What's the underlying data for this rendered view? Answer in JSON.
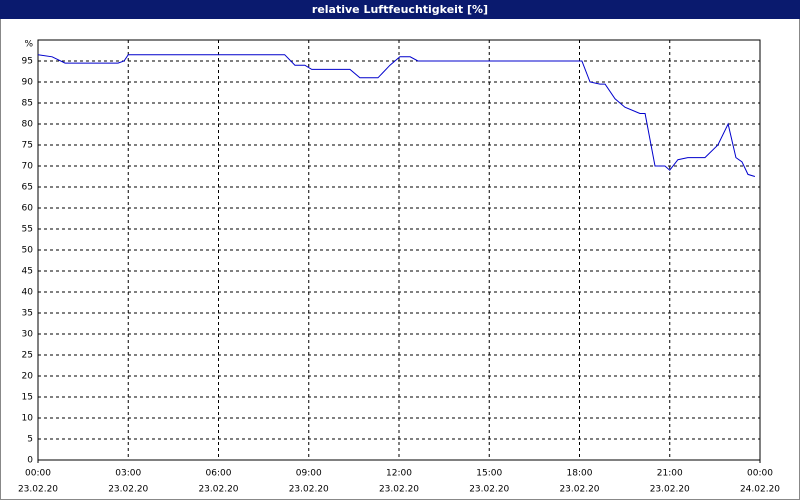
{
  "chart_data": {
    "type": "line",
    "title": "relative Luftfeuchtigkeit [%]",
    "y_label": "%",
    "x": [
      0,
      0.47,
      0.9,
      2.66,
      2.86,
      3.0,
      8.2,
      8.54,
      8.87,
      9.1,
      10.37,
      10.7,
      11.3,
      11.7,
      12.03,
      12.37,
      12.63,
      18.08,
      18.35,
      18.68,
      18.85,
      19.18,
      19.51,
      20.01,
      20.18,
      20.51,
      20.84,
      21.0,
      21.27,
      21.6,
      22.17,
      22.6,
      22.94,
      23.2,
      23.4,
      23.6,
      23.83
    ],
    "series": [
      {
        "name": "relative Luftfeuchtigkeit",
        "color": "#0000cc",
        "values": [
          96.5,
          96,
          94.5,
          94.5,
          95,
          96.5,
          96.5,
          94,
          94,
          93,
          93,
          91,
          91,
          94,
          96,
          96,
          95,
          95,
          90,
          89.5,
          89.5,
          86,
          84,
          82.5,
          82.5,
          70,
          70,
          69,
          71.5,
          72,
          72,
          75,
          80,
          72,
          71,
          68,
          67.5
        ]
      }
    ],
    "xlim": [
      0,
      24
    ],
    "xticks": [
      {
        "value": 0,
        "label": "00:00",
        "date": "23.02.20"
      },
      {
        "value": 3,
        "label": "03:00",
        "date": "23.02.20"
      },
      {
        "value": 6,
        "label": "06:00",
        "date": "23.02.20"
      },
      {
        "value": 9,
        "label": "09:00",
        "date": "23.02.20"
      },
      {
        "value": 12,
        "label": "12:00",
        "date": "23.02.20"
      },
      {
        "value": 15,
        "label": "15:00",
        "date": "23.02.20"
      },
      {
        "value": 18,
        "label": "18:00",
        "date": "23.02.20"
      },
      {
        "value": 21,
        "label": "21:00",
        "date": "23.02.20"
      },
      {
        "value": 24,
        "label": "00:00",
        "date": "24.02.20"
      }
    ],
    "ylim": [
      0,
      100
    ],
    "yticks": [
      0,
      5,
      10,
      15,
      20,
      25,
      30,
      35,
      40,
      45,
      50,
      55,
      60,
      65,
      70,
      75,
      80,
      85,
      90,
      95
    ],
    "grid": true
  }
}
